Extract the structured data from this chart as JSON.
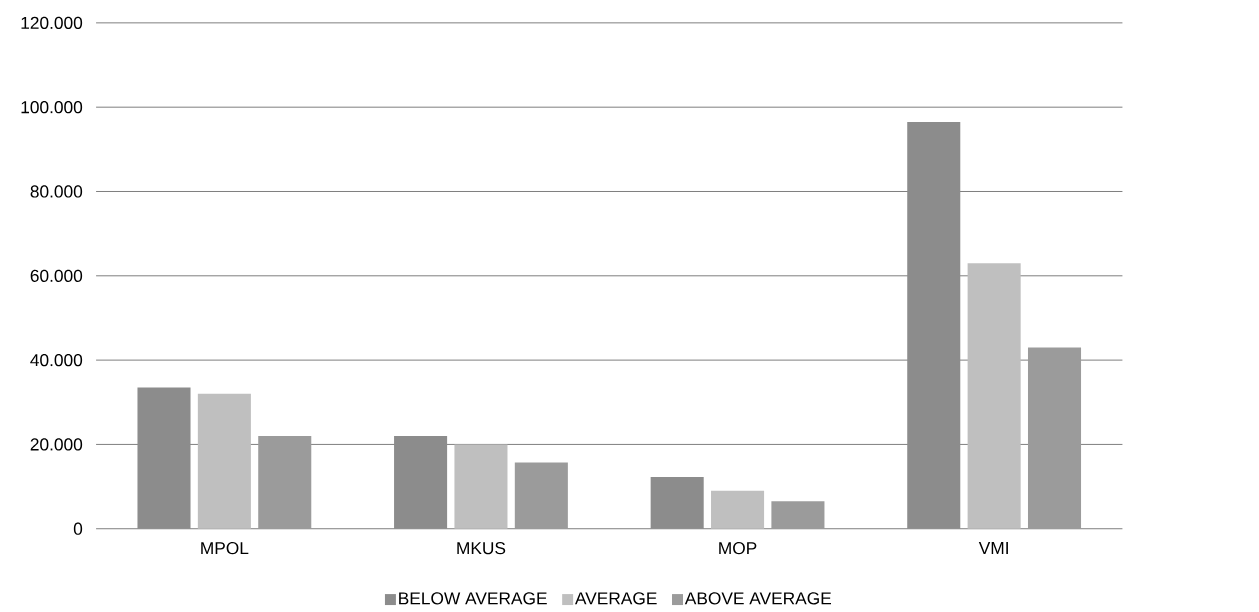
{
  "chart_data": {
    "type": "bar",
    "categories": [
      "MPOL",
      "MKUS",
      "MOP",
      "VMI"
    ],
    "series": [
      {
        "name": "BELOW AVERAGE",
        "color": "#8c8c8c",
        "values": [
          33500,
          22000,
          12300,
          96500
        ]
      },
      {
        "name": "AVERAGE",
        "color": "#bfbfbf",
        "values": [
          32000,
          20000,
          9000,
          63000
        ]
      },
      {
        "name": "ABOVE AVERAGE",
        "color": "#9b9b9b",
        "values": [
          22000,
          15700,
          6500,
          43000
        ]
      }
    ],
    "ylim": [
      0,
      120000
    ],
    "yticks": [
      {
        "value": 0,
        "label": "0"
      },
      {
        "value": 20000,
        "label": "20.000"
      },
      {
        "value": 40000,
        "label": "40.000"
      },
      {
        "value": 60000,
        "label": "60.000"
      },
      {
        "value": 80000,
        "label": "80.000"
      },
      {
        "value": 100000,
        "label": "100.000"
      },
      {
        "value": 120000,
        "label": "120.000"
      }
    ],
    "grid": "y",
    "legend": "bottom"
  }
}
